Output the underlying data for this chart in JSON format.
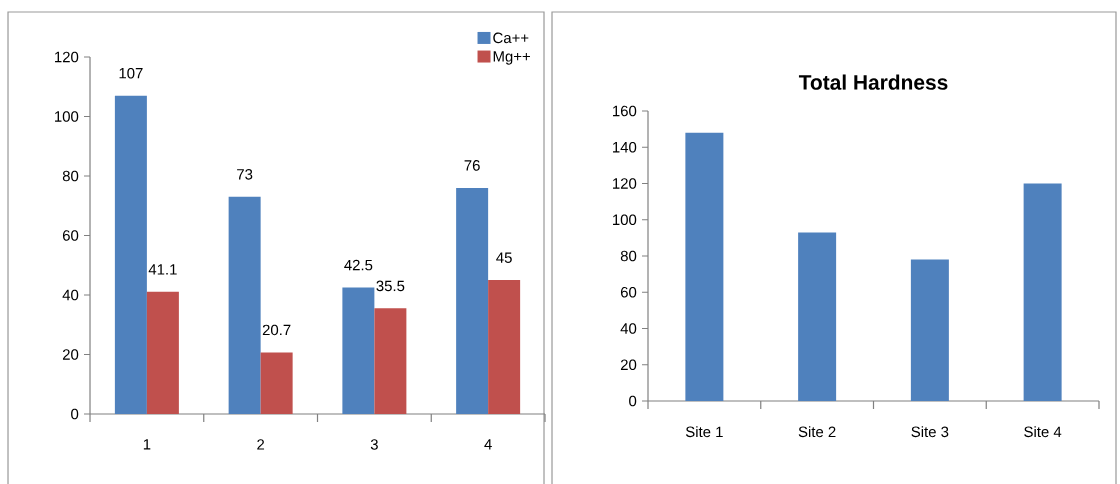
{
  "chart_data": [
    {
      "type": "bar",
      "categories": [
        "1",
        "2",
        "3",
        "4"
      ],
      "series": [
        {
          "name": "Ca++",
          "color": "#4f81bd",
          "values": [
            107,
            73,
            42.5,
            76
          ]
        },
        {
          "name": "Mg++",
          "color": "#c0504d",
          "values": [
            41.1,
            20.7,
            35.5,
            45
          ]
        }
      ],
      "ylim": [
        0,
        120
      ],
      "yticks": [
        0,
        20,
        40,
        60,
        80,
        100,
        120
      ],
      "data_labels": true,
      "legend": "top right",
      "grid": false
    },
    {
      "type": "bar",
      "title": "Total Hardness",
      "categories": [
        "Site 1",
        "Site 2",
        "Site 3",
        "Site 4"
      ],
      "values": [
        148,
        93,
        78,
        120
      ],
      "color": "#4f81bd",
      "ylim": [
        0,
        160
      ],
      "yticks": [
        0,
        20,
        40,
        60,
        80,
        100,
        120,
        140,
        160
      ],
      "grid": false
    }
  ]
}
